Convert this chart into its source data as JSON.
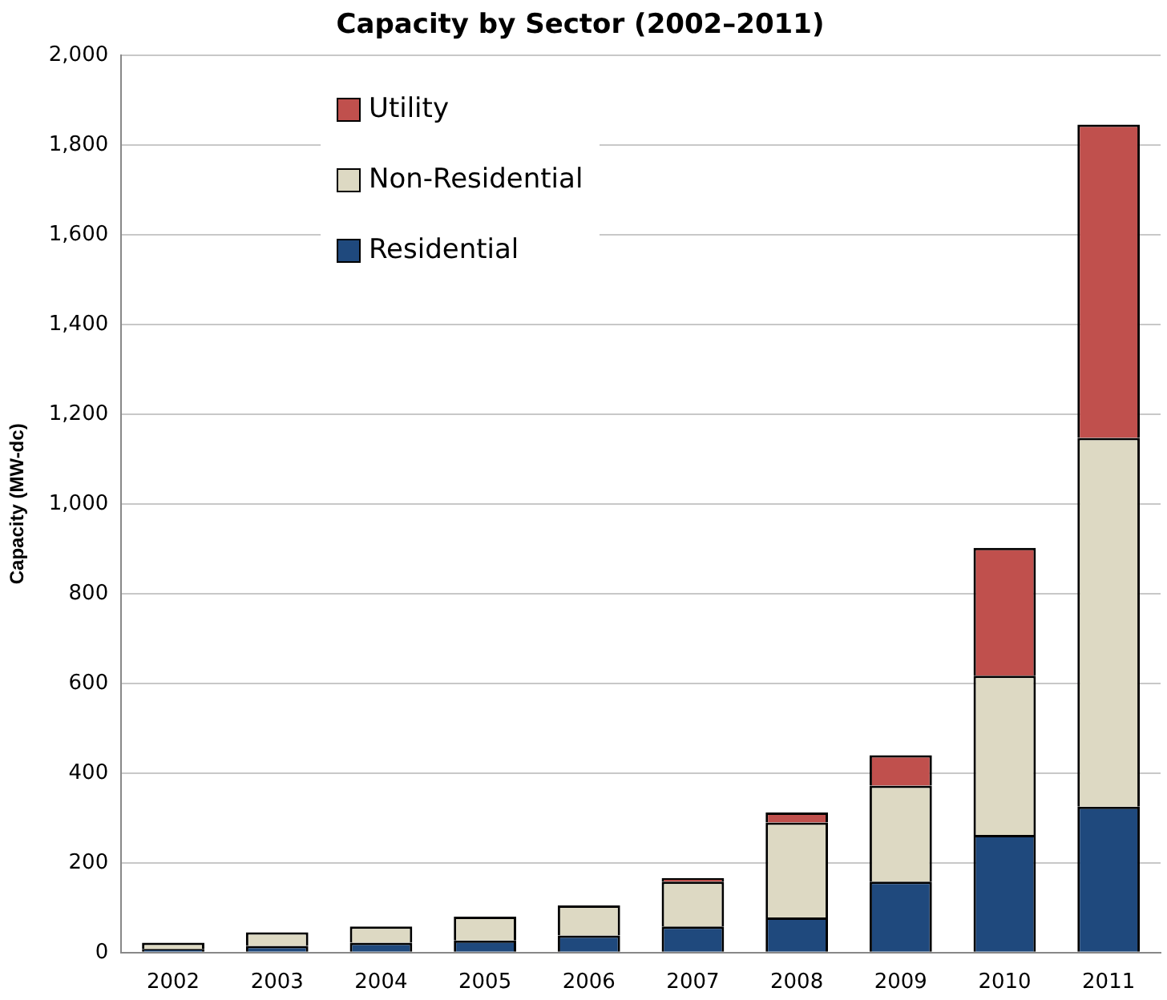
{
  "chart_data": {
    "type": "bar",
    "title": "Capacity by Sector (2002–2011)",
    "ylabel": "Capacity (MW-dc)",
    "categories": [
      "2002",
      "2003",
      "2004",
      "2005",
      "2006",
      "2007",
      "2008",
      "2009",
      "2010",
      "2011"
    ],
    "stacked": true,
    "series": [
      {
        "name": "Residential",
        "color": "#1f497d",
        "values": [
          8,
          15,
          22,
          27,
          38,
          58,
          78,
          158,
          262,
          325
        ]
      },
      {
        "name": "Non-Residential",
        "color": "#ddd9c3",
        "values": [
          14,
          30,
          36,
          53,
          67,
          100,
          212,
          214,
          355,
          822
        ]
      },
      {
        "name": "Utility",
        "color": "#c0504d",
        "values": [
          null,
          null,
          null,
          null,
          null,
          8,
          22,
          68,
          285,
          698
        ]
      }
    ],
    "ylim": [
      0,
      2000
    ],
    "yticks": [
      {
        "value": 0,
        "label": "0"
      },
      {
        "value": 200,
        "label": "200"
      },
      {
        "value": 400,
        "label": "400"
      },
      {
        "value": 600,
        "label": "600"
      },
      {
        "value": 800,
        "label": "800"
      },
      {
        "value": 1000,
        "label": "1,000"
      },
      {
        "value": 1200,
        "label": "1,200"
      },
      {
        "value": 1400,
        "label": "1,400"
      },
      {
        "value": 1600,
        "label": "1,600"
      },
      {
        "value": 1800,
        "label": "1,800"
      },
      {
        "value": 2000,
        "label": "2,000"
      }
    ],
    "grid": "y",
    "legend": "top left"
  }
}
